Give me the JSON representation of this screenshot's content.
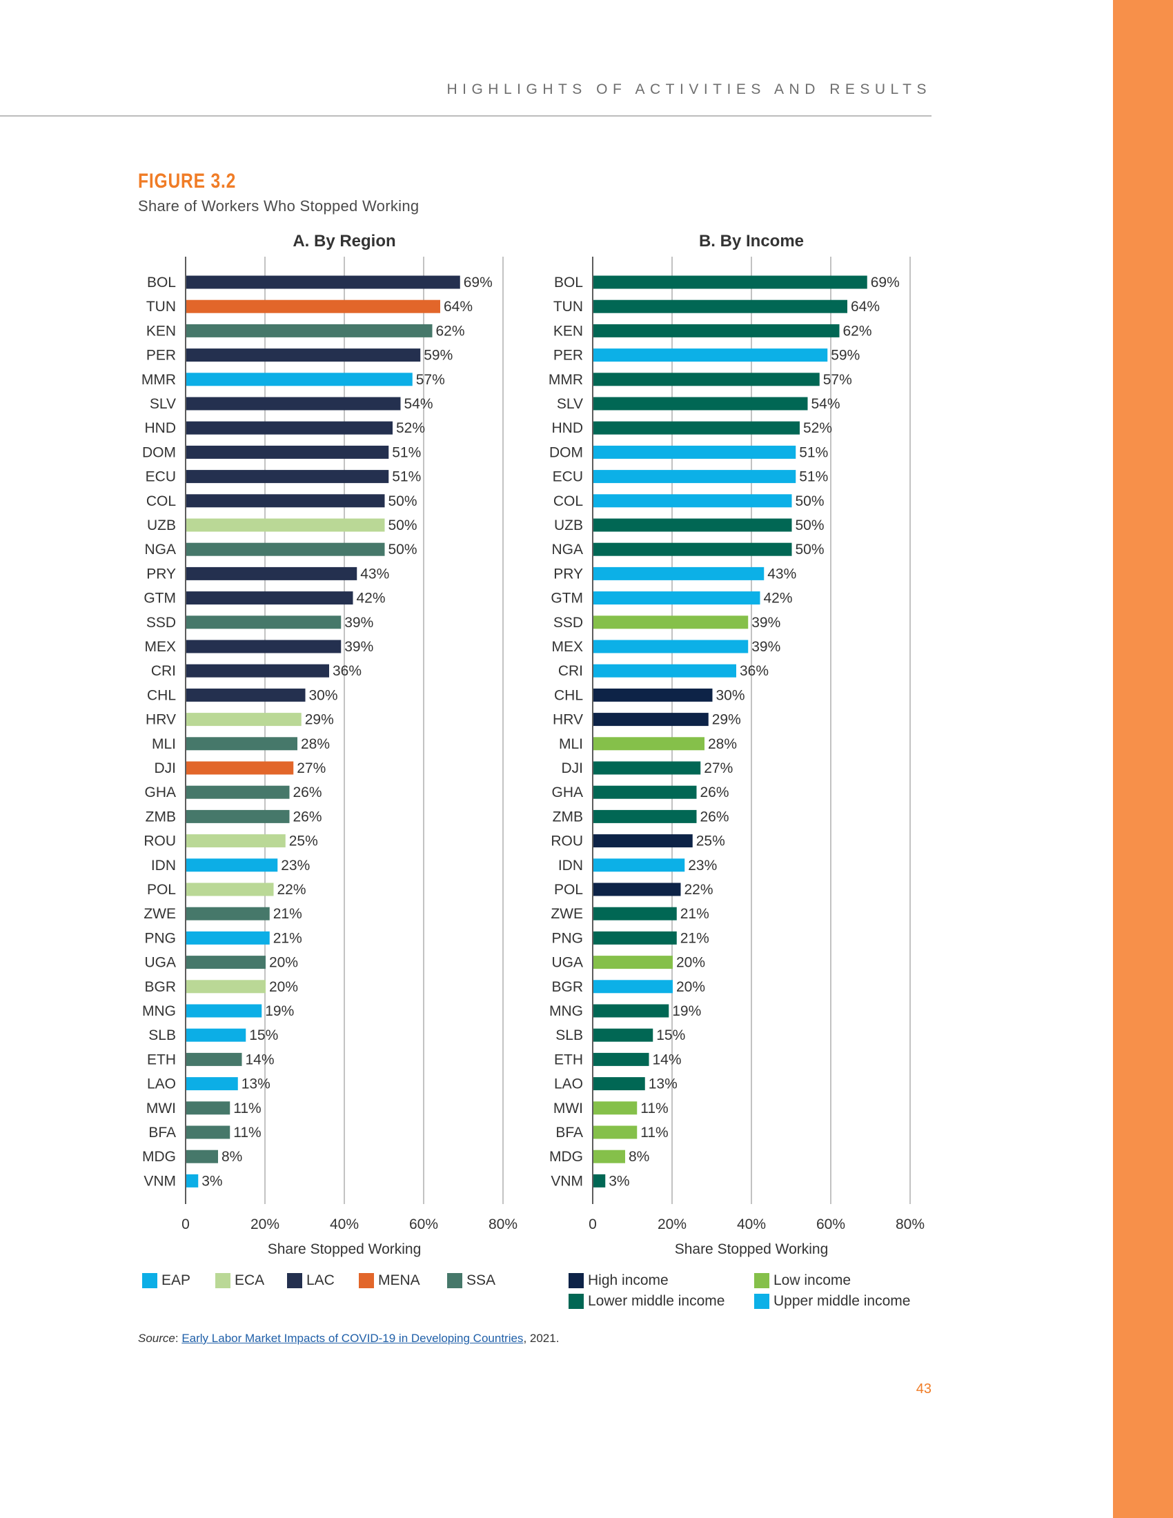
{
  "header": {
    "running_head": "HIGHLIGHTS OF ACTIVITIES AND RESULTS"
  },
  "figure": {
    "label": "FIGURE 3.2",
    "title": "Share of Workers Who Stopped Working"
  },
  "colors": {
    "EAP": "#0caee6",
    "ECA": "#bad896",
    "LAC": "#24304f",
    "MENA": "#e2662a",
    "SSA": "#46786a",
    "High income": "#0d2347",
    "Low income": "#85c04a",
    "Lower middle income": "#016754",
    "Upper middle income": "#0cb0e7"
  },
  "chart_data": [
    {
      "type": "bar",
      "orientation": "horizontal",
      "title": "A. By Region",
      "xlabel": "Share Stopped Working",
      "xlim": [
        0,
        80
      ],
      "xticks": [
        "0",
        "20%",
        "40%",
        "60%",
        "80%"
      ],
      "grid": true,
      "categories": [
        "BOL",
        "TUN",
        "KEN",
        "PER",
        "MMR",
        "SLV",
        "HND",
        "DOM",
        "ECU",
        "COL",
        "UZB",
        "NGA",
        "PRY",
        "GTM",
        "SSD",
        "MEX",
        "CRI",
        "CHL",
        "HRV",
        "MLI",
        "DJI",
        "GHA",
        "ZMB",
        "ROU",
        "IDN",
        "POL",
        "ZWE",
        "PNG",
        "UGA",
        "BGR",
        "MNG",
        "SLB",
        "ETH",
        "LAO",
        "MWI",
        "BFA",
        "MDG",
        "VNM"
      ],
      "values": [
        69,
        64,
        62,
        59,
        57,
        54,
        52,
        51,
        51,
        50,
        50,
        50,
        43,
        42,
        39,
        39,
        36,
        30,
        29,
        28,
        27,
        26,
        26,
        25,
        23,
        22,
        21,
        21,
        20,
        20,
        19,
        15,
        14,
        13,
        11,
        11,
        8,
        3
      ],
      "labels": [
        "69%",
        "64%",
        "62%",
        "59%",
        "57%",
        "54%",
        "52%",
        "51%",
        "51%",
        "50%",
        "50%",
        "50%",
        "43%",
        "42%",
        "39%",
        "39%",
        "36%",
        "30%",
        "29%",
        "28%",
        "27%",
        "26%",
        "26%",
        "25%",
        "23%",
        "22%",
        "21%",
        "21%",
        "20%",
        "20%",
        "19%",
        "15%",
        "14%",
        "13%",
        "11%",
        "11%",
        "8%",
        "3%"
      ],
      "groups": [
        "LAC",
        "MENA",
        "SSA",
        "LAC",
        "EAP",
        "LAC",
        "LAC",
        "LAC",
        "LAC",
        "LAC",
        "ECA",
        "SSA",
        "LAC",
        "LAC",
        "SSA",
        "LAC",
        "LAC",
        "LAC",
        "ECA",
        "SSA",
        "MENA",
        "SSA",
        "SSA",
        "ECA",
        "EAP",
        "ECA",
        "SSA",
        "EAP",
        "SSA",
        "ECA",
        "EAP",
        "EAP",
        "SSA",
        "EAP",
        "SSA",
        "SSA",
        "SSA",
        "EAP"
      ],
      "legend": [
        "EAP",
        "ECA",
        "LAC",
        "MENA",
        "SSA"
      ],
      "legend_position": "bottom"
    },
    {
      "type": "bar",
      "orientation": "horizontal",
      "title": "B. By Income",
      "xlabel": "Share Stopped Working",
      "xlim": [
        0,
        80
      ],
      "xticks": [
        "0",
        "20%",
        "40%",
        "60%",
        "80%"
      ],
      "grid": true,
      "categories": [
        "BOL",
        "TUN",
        "KEN",
        "PER",
        "MMR",
        "SLV",
        "HND",
        "DOM",
        "ECU",
        "COL",
        "UZB",
        "NGA",
        "PRY",
        "GTM",
        "SSD",
        "MEX",
        "CRI",
        "CHL",
        "HRV",
        "MLI",
        "DJI",
        "GHA",
        "ZMB",
        "ROU",
        "IDN",
        "POL",
        "ZWE",
        "PNG",
        "UGA",
        "BGR",
        "MNG",
        "SLB",
        "ETH",
        "LAO",
        "MWI",
        "BFA",
        "MDG",
        "VNM"
      ],
      "values": [
        69,
        64,
        62,
        59,
        57,
        54,
        52,
        51,
        51,
        50,
        50,
        50,
        43,
        42,
        39,
        39,
        36,
        30,
        29,
        28,
        27,
        26,
        26,
        25,
        23,
        22,
        21,
        21,
        20,
        20,
        19,
        15,
        14,
        13,
        11,
        11,
        8,
        3
      ],
      "labels": [
        "69%",
        "64%",
        "62%",
        "59%",
        "57%",
        "54%",
        "52%",
        "51%",
        "51%",
        "50%",
        "50%",
        "50%",
        "43%",
        "42%",
        "39%",
        "39%",
        "36%",
        "30%",
        "29%",
        "28%",
        "27%",
        "26%",
        "26%",
        "25%",
        "23%",
        "22%",
        "21%",
        "21%",
        "20%",
        "20%",
        "19%",
        "15%",
        "14%",
        "13%",
        "11%",
        "11%",
        "8%",
        "3%"
      ],
      "groups": [
        "Lower middle income",
        "Lower middle income",
        "Lower middle income",
        "Upper middle income",
        "Lower middle income",
        "Lower middle income",
        "Lower middle income",
        "Upper middle income",
        "Upper middle income",
        "Upper middle income",
        "Lower middle income",
        "Lower middle income",
        "Upper middle income",
        "Upper middle income",
        "Low income",
        "Upper middle income",
        "Upper middle income",
        "High income",
        "High income",
        "Low income",
        "Lower middle income",
        "Lower middle income",
        "Lower middle income",
        "High income",
        "Upper middle income",
        "High income",
        "Lower middle income",
        "Lower middle income",
        "Low income",
        "Upper middle income",
        "Lower middle income",
        "Lower middle income",
        "Lower middle income",
        "Lower middle income",
        "Low income",
        "Low income",
        "Low income",
        "Lower middle income"
      ],
      "legend": [
        "High income",
        "Low income",
        "Lower middle income",
        "Upper middle income"
      ],
      "legend_position": "bottom"
    }
  ],
  "source": {
    "label": "Source",
    "sep": ": ",
    "link_text": "Early Labor Market Impacts of COVID-19 in Developing Countries",
    "suffix": ", 2021."
  },
  "page_number": "43"
}
